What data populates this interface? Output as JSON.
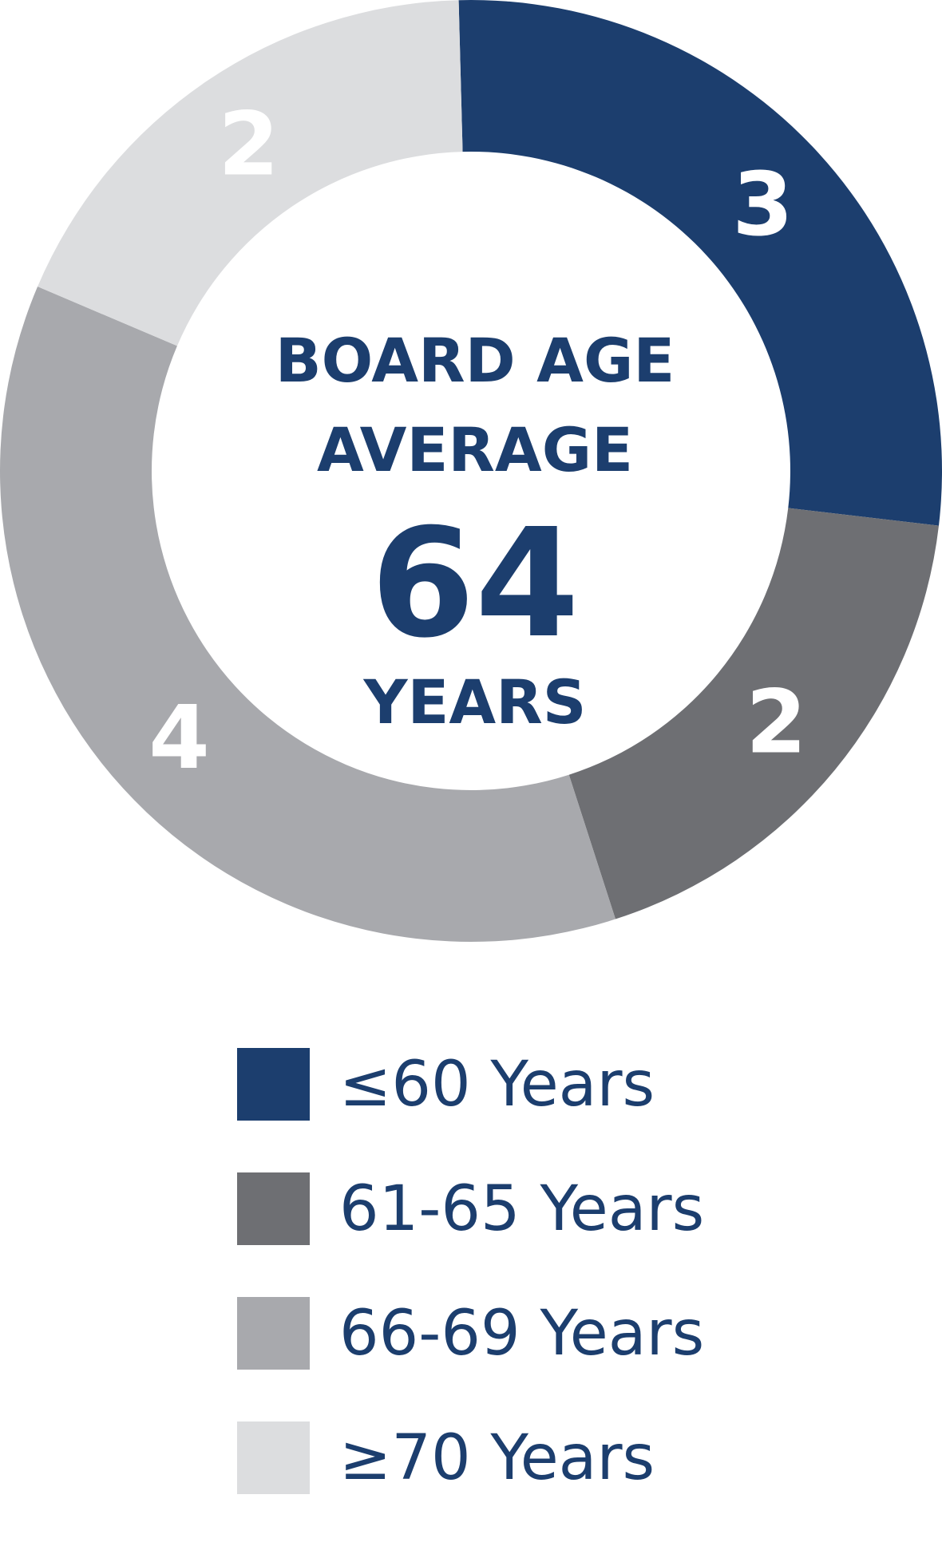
{
  "chart_data": {
    "type": "pie",
    "categories": [
      "≤60 Years",
      "61-65 Years",
      "66-69 Years",
      "≥70 Years"
    ],
    "values": [
      3,
      2,
      4,
      2
    ],
    "colors": [
      "#1c3e6e",
      "#6e6f73",
      "#a8a9ad",
      "#dcdddf"
    ],
    "label_colors": [
      "#ffffff",
      "#ffffff",
      "#ffffff",
      "#ffffff"
    ],
    "center_text": {
      "line1": "BOARD AGE",
      "line2": "AVERAGE",
      "value": "64",
      "unit": "YEARS"
    },
    "legend_position": "bottom"
  }
}
